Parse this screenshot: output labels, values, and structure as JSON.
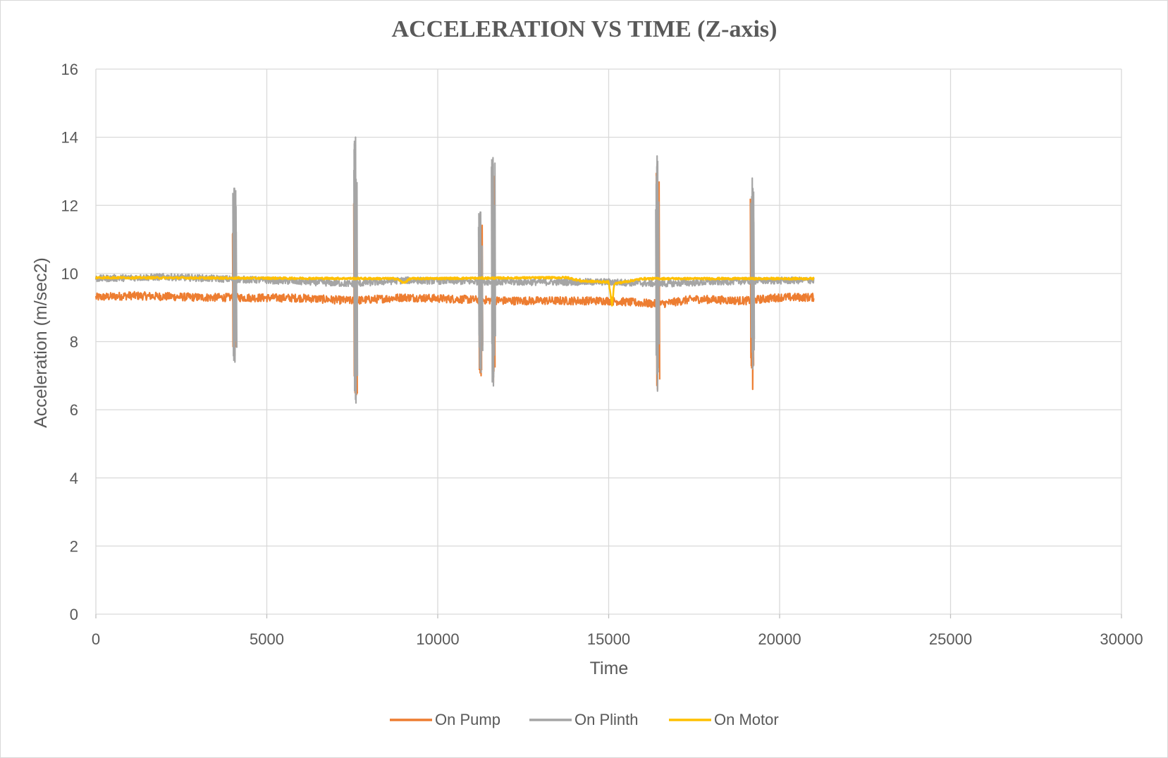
{
  "chart_data": {
    "type": "line",
    "title": "ACCELERATION VS TIME (Z-axis)",
    "xlabel": "Time",
    "ylabel": "Acceleration (m/sec2)",
    "xlim": [
      0,
      30000
    ],
    "ylim": [
      0,
      16
    ],
    "x_ticks": [
      "0",
      "5000",
      "10000",
      "15000",
      "20000",
      "25000",
      "30000"
    ],
    "y_ticks": [
      "0",
      "2",
      "4",
      "6",
      "8",
      "10",
      "12",
      "14",
      "16"
    ],
    "grid": true,
    "legend_position": "bottom",
    "series": [
      {
        "name": "On Pump",
        "color": "#ED7D31",
        "x_range": [
          0,
          21000
        ],
        "baseline": [
          [
            0,
            9.3
          ],
          [
            1000,
            9.35
          ],
          [
            3000,
            9.3
          ],
          [
            6000,
            9.28
          ],
          [
            7500,
            9.2
          ],
          [
            9000,
            9.3
          ],
          [
            12000,
            9.2
          ],
          [
            15000,
            9.2
          ],
          [
            16500,
            9.1
          ],
          [
            17500,
            9.25
          ],
          [
            19000,
            9.2
          ],
          [
            20000,
            9.3
          ],
          [
            21000,
            9.3
          ]
        ],
        "band": 0.12,
        "spikes": [
          {
            "x": 4050,
            "max": 11.8,
            "min": 7.6
          },
          {
            "x": 7600,
            "max": 12.8,
            "min": 6.4
          },
          {
            "x": 11250,
            "max": 11.6,
            "min": 7.0
          },
          {
            "x": 11620,
            "max": 13.2,
            "min": 6.8
          },
          {
            "x": 16420,
            "max": 13.2,
            "min": 6.6
          },
          {
            "x": 19200,
            "max": 12.4,
            "min": 6.6
          }
        ]
      },
      {
        "name": "On Plinth",
        "color": "#A5A5A5",
        "x_range": [
          0,
          21000
        ],
        "baseline": [
          [
            0,
            9.85
          ],
          [
            2000,
            9.9
          ],
          [
            5000,
            9.8
          ],
          [
            7500,
            9.7
          ],
          [
            9000,
            9.8
          ],
          [
            12000,
            9.75
          ],
          [
            15000,
            9.75
          ],
          [
            16500,
            9.7
          ],
          [
            19000,
            9.78
          ],
          [
            21000,
            9.8
          ]
        ],
        "band": 0.1,
        "spikes": [
          {
            "x": 4050,
            "max": 12.5,
            "min": 7.4
          },
          {
            "x": 7600,
            "max": 14.0,
            "min": 6.2
          },
          {
            "x": 11250,
            "max": 11.8,
            "min": 7.1
          },
          {
            "x": 11620,
            "max": 13.4,
            "min": 6.7
          },
          {
            "x": 16420,
            "max": 13.45,
            "min": 6.55
          },
          {
            "x": 19200,
            "max": 12.8,
            "min": 7.2
          }
        ]
      },
      {
        "name": "On Motor",
        "color": "#FFC000",
        "x_range": [
          0,
          21000
        ],
        "baseline": [
          [
            0,
            9.88
          ],
          [
            8800,
            9.85
          ],
          [
            9000,
            9.72
          ],
          [
            9200,
            9.85
          ],
          [
            13800,
            9.88
          ],
          [
            14200,
            9.78
          ],
          [
            15000,
            9.75
          ],
          [
            15100,
            9.05
          ],
          [
            15160,
            9.7
          ],
          [
            16000,
            9.85
          ],
          [
            21000,
            9.85
          ]
        ],
        "band": 0.03,
        "spikes": []
      }
    ]
  }
}
